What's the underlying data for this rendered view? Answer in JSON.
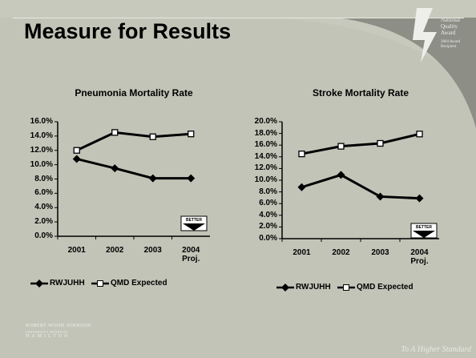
{
  "slide": {
    "title": "Measure for Results",
    "footer": "To A Higher Standard",
    "award": [
      "National",
      "Quality",
      "Award",
      "2004 Award Recipient"
    ],
    "logo": [
      "ROBERT WOOD JOHNSON",
      "UNIVERSITY HOSPITAL",
      "HAMILTON"
    ]
  },
  "chart_data": [
    {
      "type": "line",
      "title": "Pneumonia Mortality Rate",
      "categories": [
        "2001",
        "2002",
        "2003",
        "2004 Proj."
      ],
      "series": [
        {
          "name": "RWJUHH",
          "color": "#000000",
          "marker": "diamond",
          "values": [
            10.8,
            9.5,
            8.1,
            8.1
          ]
        },
        {
          "name": "QMD Expected",
          "color": "#000000",
          "marker": "square",
          "values": [
            12.0,
            14.5,
            13.9,
            14.3
          ]
        }
      ],
      "ylim": [
        0,
        16
      ],
      "yticks": [
        {
          "value": 0,
          "label": "0.0%"
        },
        {
          "value": 2,
          "label": "2.0%"
        },
        {
          "value": 4,
          "label": "4.0%"
        },
        {
          "value": 6,
          "label": "6.0%"
        },
        {
          "value": 8,
          "label": "8.0%"
        },
        {
          "value": 10,
          "label": "10.0%"
        },
        {
          "value": 12,
          "label": "12.0%"
        },
        {
          "value": 14,
          "label": "14.0%"
        },
        {
          "value": 16,
          "label": "16.0%"
        }
      ],
      "annotation": "BETTER",
      "grid": false,
      "legend": "bottom"
    },
    {
      "type": "line",
      "title": "Stroke Mortality Rate",
      "categories": [
        "2001",
        "2002",
        "2003",
        "2004 Proj."
      ],
      "series": [
        {
          "name": "RWJUHH",
          "color": "#000000",
          "marker": "diamond",
          "values": [
            8.8,
            10.9,
            7.2,
            6.9
          ]
        },
        {
          "name": "QMD Expected",
          "color": "#000000",
          "marker": "square",
          "values": [
            14.5,
            15.8,
            16.3,
            17.9
          ]
        }
      ],
      "ylim": [
        0,
        20
      ],
      "yticks": [
        {
          "value": 0,
          "label": "0.0%"
        },
        {
          "value": 2,
          "label": "2.0%"
        },
        {
          "value": 4,
          "label": "4.0%"
        },
        {
          "value": 6,
          "label": "6.0%"
        },
        {
          "value": 8,
          "label": "8.0%"
        },
        {
          "value": 10,
          "label": "10.0%"
        },
        {
          "value": 12,
          "label": "12.0%"
        },
        {
          "value": 14,
          "label": "14.0%"
        },
        {
          "value": 16,
          "label": "16.0%"
        },
        {
          "value": 18,
          "label": "18.0%"
        },
        {
          "value": 20,
          "label": "20.0%"
        }
      ],
      "annotation": "BETTER",
      "grid": false,
      "legend": "bottom"
    }
  ]
}
